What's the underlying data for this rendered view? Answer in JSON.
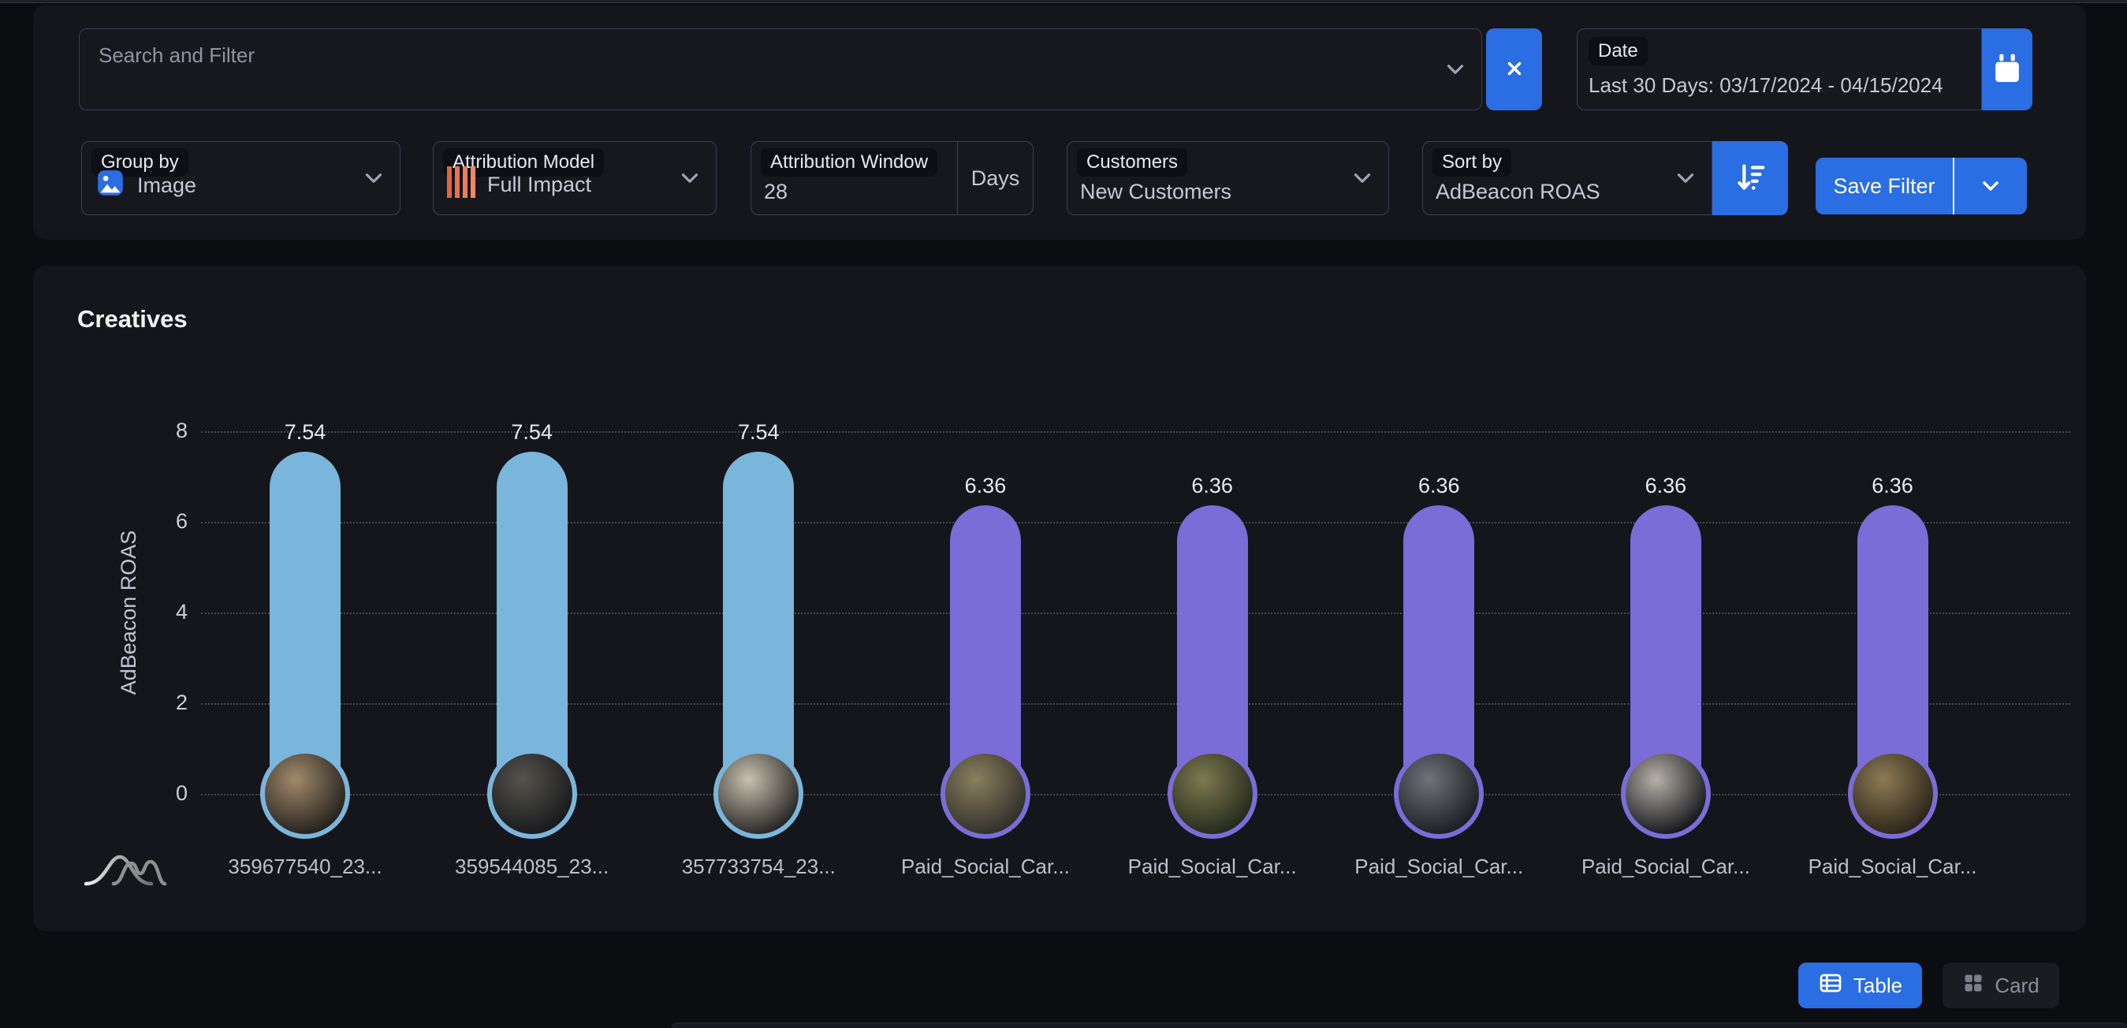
{
  "filter_bar": {
    "search": {
      "placeholder": "Search and Filter"
    },
    "date": {
      "label": "Date",
      "value": "Last 30 Days: 03/17/2024 - 04/15/2024"
    },
    "group_by": {
      "label": "Group by",
      "value": "Image"
    },
    "attribution_model": {
      "label": "Attribution Model",
      "value": "Full Impact"
    },
    "attribution_window": {
      "label": "Attribution Window",
      "value": "28",
      "unit": "Days"
    },
    "customers": {
      "label": "Customers",
      "value": "New Customers"
    },
    "sort_by": {
      "label": "Sort by",
      "value": "AdBeacon ROAS"
    },
    "save_filter": {
      "label": "Save Filter"
    }
  },
  "chart_panel": {
    "title": "Creatives"
  },
  "chart_data": {
    "type": "bar",
    "title": "Creatives",
    "ylabel": "AdBeacon ROAS",
    "ylim": [
      0,
      8
    ],
    "yticks": [
      0,
      2,
      4,
      6,
      8
    ],
    "grid": "dotted-horizontal",
    "legend": "none",
    "categories": [
      "359677540_23...",
      "359544085_23...",
      "357733754_23...",
      "Paid_Social_Car...",
      "Paid_Social_Car...",
      "Paid_Social_Car...",
      "Paid_Social_Car...",
      "Paid_Social_Car..."
    ],
    "values": [
      7.54,
      7.54,
      7.54,
      6.36,
      6.36,
      6.36,
      6.36,
      6.36
    ],
    "value_labels": [
      "7.54",
      "7.54",
      "7.54",
      "6.36",
      "6.36",
      "6.36",
      "6.36",
      "6.36"
    ],
    "bar_colors": [
      "#7ab5dc",
      "#7ab5dc",
      "#7ab5dc",
      "#7b6cd8",
      "#7b6cd8",
      "#7b6cd8",
      "#7b6cd8",
      "#7b6cd8"
    ],
    "thumb_gradients": [
      [
        "#a08a6b",
        "#221f1c"
      ],
      [
        "#55534c",
        "#17181c"
      ],
      [
        "#c9c0b0",
        "#242322"
      ],
      [
        "#8a7f5e",
        "#2e2e28"
      ],
      [
        "#7d7a4f",
        "#23281b"
      ],
      [
        "#70737a",
        "#1b1c21"
      ],
      [
        "#b5b1a9",
        "#141419"
      ],
      [
        "#8c7b55",
        "#2a2317"
      ]
    ]
  },
  "view_toggle": {
    "table_label": "Table",
    "card_label": "Card"
  },
  "icons": {
    "search_chevron": "chevron-down",
    "clear": "close-x",
    "date_button": "calendar",
    "group_by_icon": "image-picture",
    "attribution_model_icon": "orange-vertical-bars",
    "sort_button": "sort-descending",
    "table_button": "table-grid",
    "card_button": "card-squares",
    "brand_logo": "adbeacon-curves"
  },
  "colors": {
    "accent_blue": "#2b6de2",
    "bar_blue": "#7ab5dc",
    "bar_purple": "#7b6cd8",
    "attribution_icon_orange": "#e8734a",
    "page_background": "#0c0d10",
    "panel_background": "#15161b"
  }
}
